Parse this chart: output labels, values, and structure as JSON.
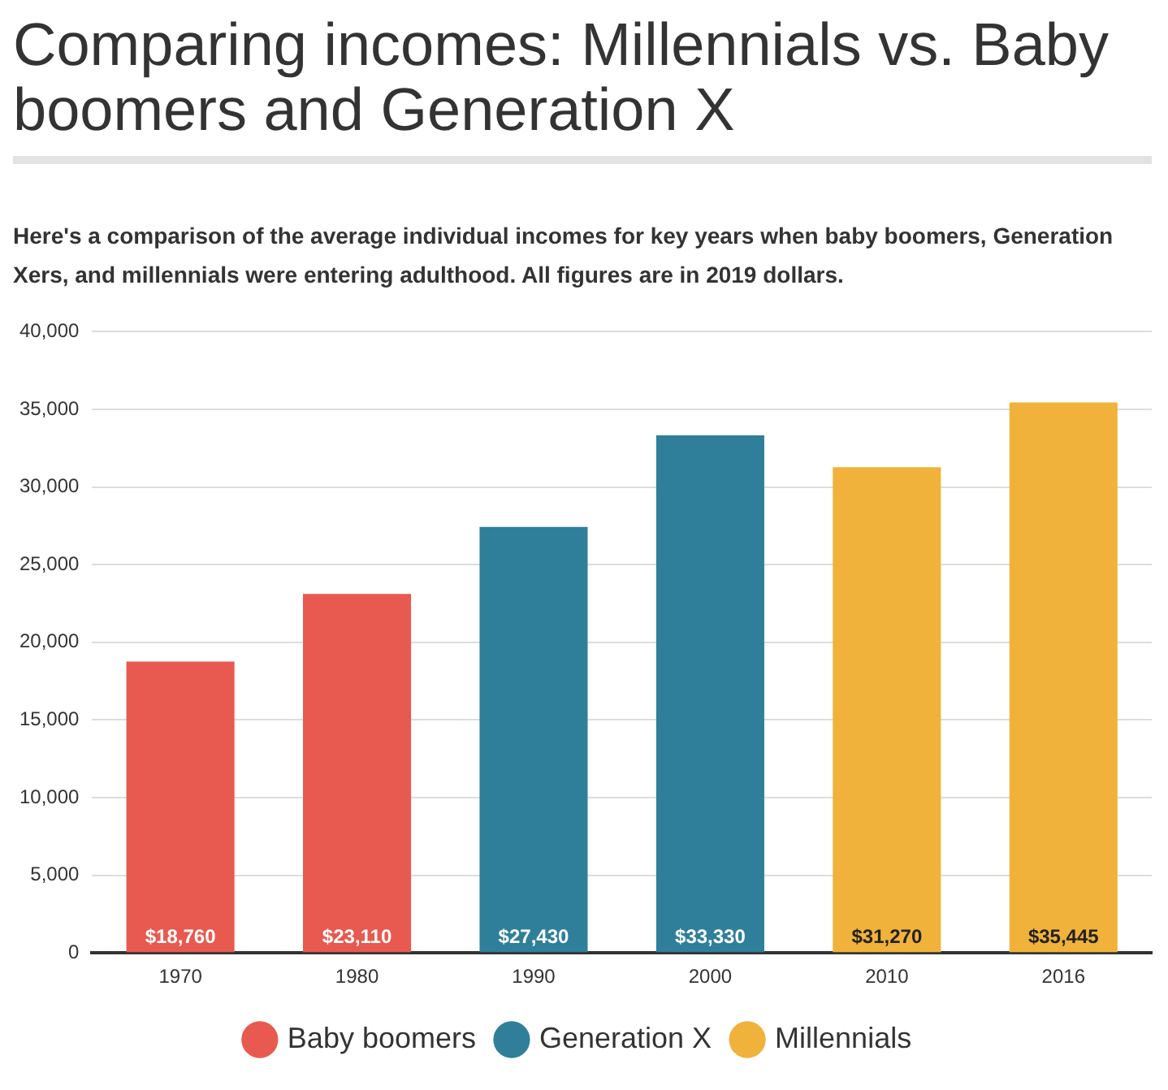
{
  "chart_data": {
    "type": "bar",
    "title": "Comparing incomes: Millennials vs. Baby boomers and Generation X",
    "subtitle": "Here's a comparison of the average individual incomes for key years when baby boomers, Generation Xers, and millennials were entering adulthood. All figures are in 2019 dollars.",
    "categories": [
      "1970",
      "1980",
      "1990",
      "2000",
      "2010",
      "2016"
    ],
    "series": [
      {
        "name": "Baby boomers",
        "color": "#e8594f",
        "values": [
          18760,
          23110,
          null,
          null,
          null,
          null
        ],
        "value_labels": [
          "$18,760",
          "$23,110",
          null,
          null,
          null,
          null
        ]
      },
      {
        "name": "Generation X",
        "color": "#2f7f9a",
        "values": [
          null,
          null,
          27430,
          33330,
          null,
          null
        ],
        "value_labels": [
          null,
          null,
          "$27,430",
          "$33,330",
          null,
          null
        ]
      },
      {
        "name": "Millennials",
        "color": "#f0b23a",
        "values": [
          null,
          null,
          null,
          null,
          31270,
          35445
        ],
        "value_labels": [
          null,
          null,
          null,
          null,
          "$31,270",
          "$35,445"
        ]
      }
    ],
    "ylim": [
      0,
      40000
    ],
    "yticks": [
      {
        "value": 0,
        "label": "0"
      },
      {
        "value": 5000,
        "label": "5,000"
      },
      {
        "value": 10000,
        "label": "10,000"
      },
      {
        "value": 15000,
        "label": "15,000"
      },
      {
        "value": 20000,
        "label": "20,000"
      },
      {
        "value": 25000,
        "label": "25,000"
      },
      {
        "value": 30000,
        "label": "30,000"
      },
      {
        "value": 35000,
        "label": "35,000"
      },
      {
        "value": 40000,
        "label": "40,000"
      }
    ],
    "grid": "y",
    "legend": "bottom"
  }
}
